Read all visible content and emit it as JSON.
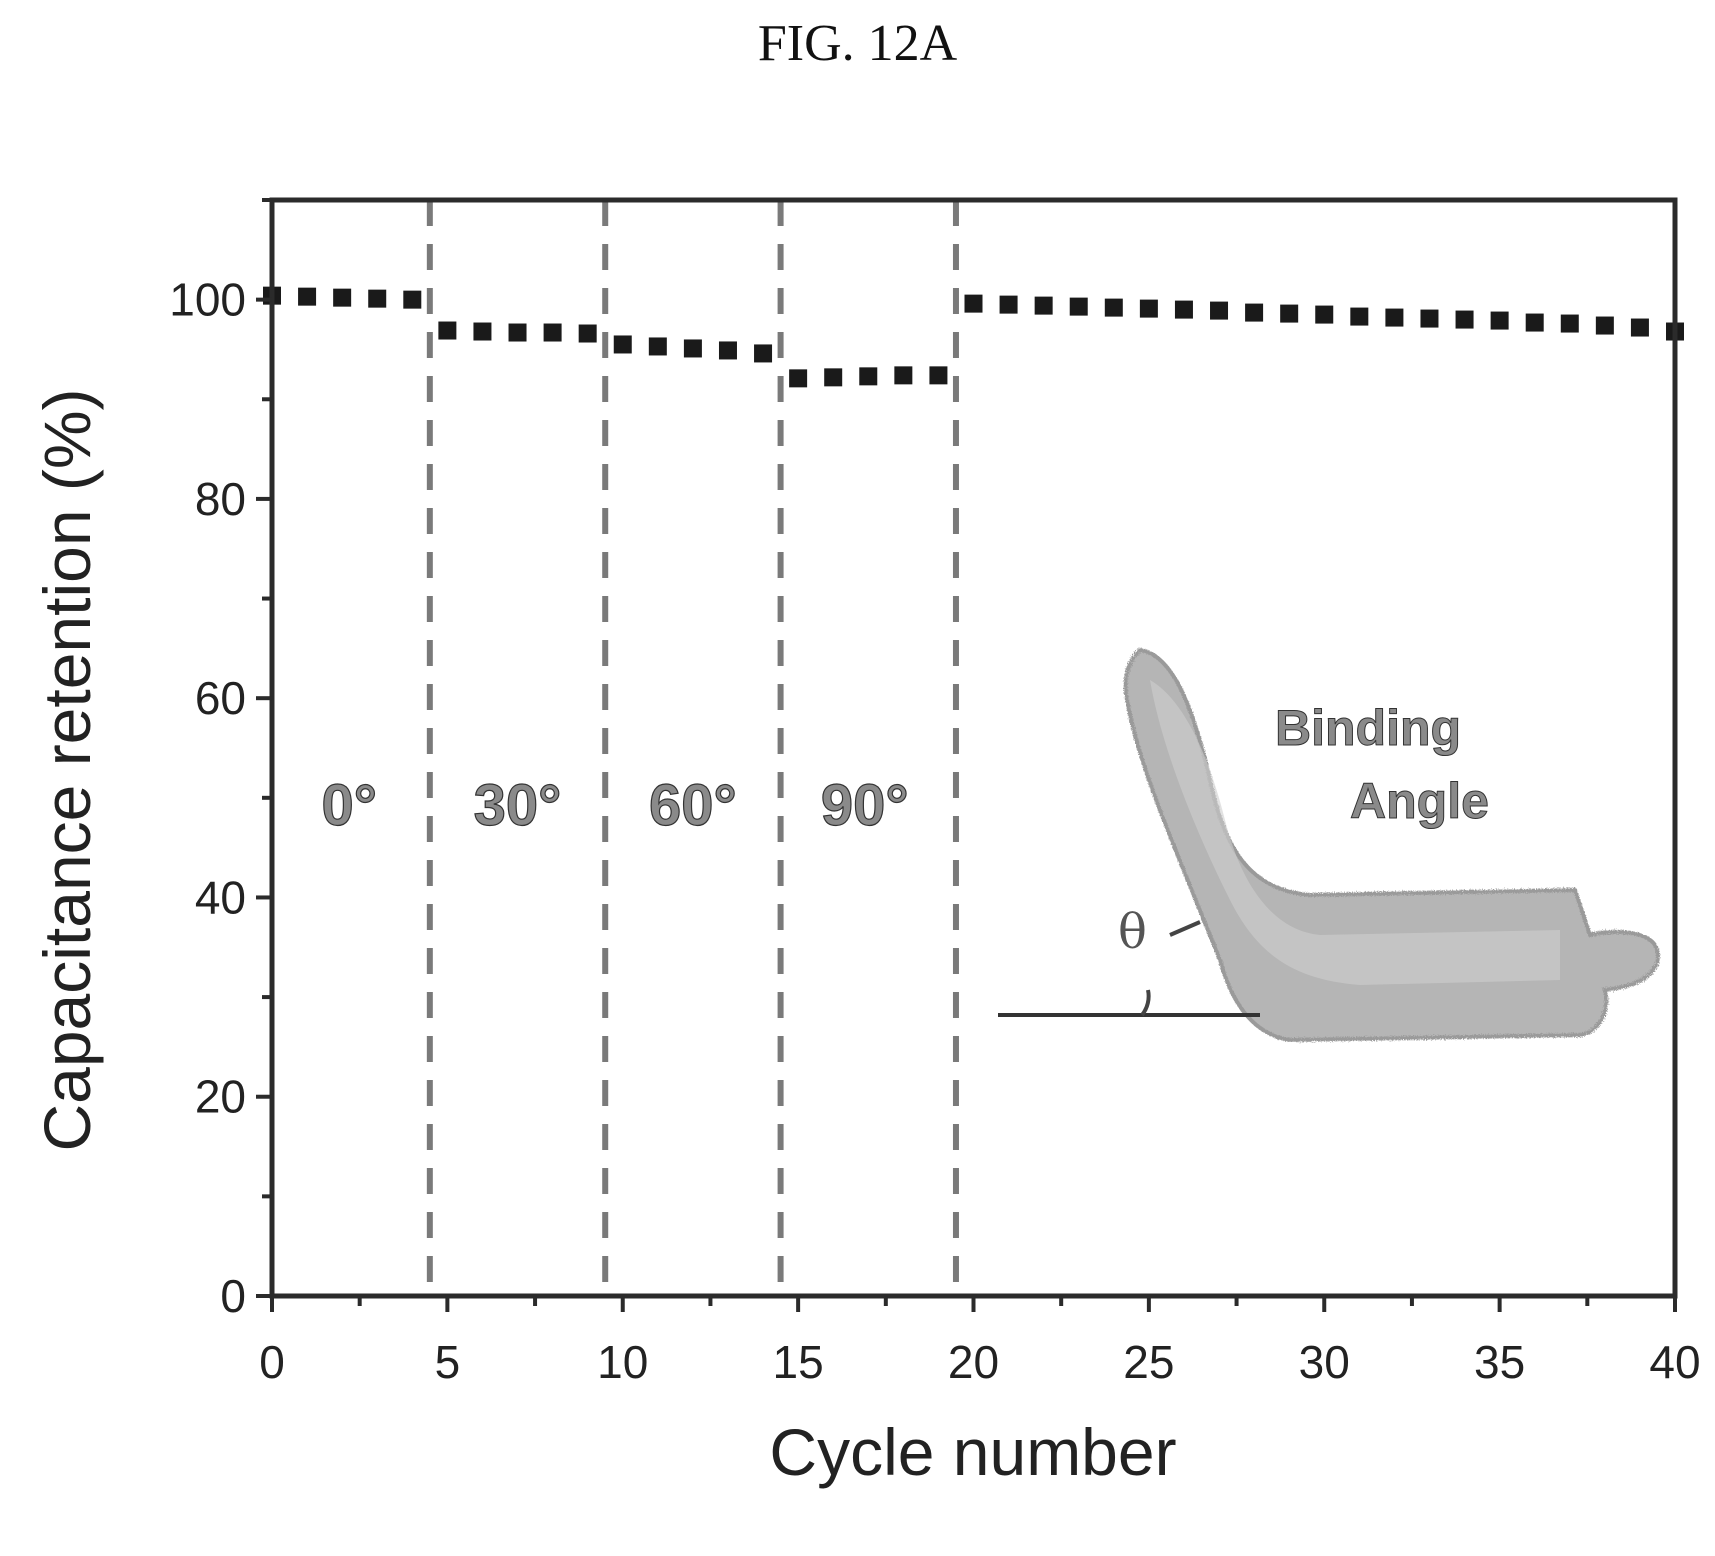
{
  "figure_title": "FIG. 12A",
  "chart_data": {
    "type": "scatter",
    "title": "",
    "xlabel": "Cycle number",
    "ylabel": "Capacitance retention (%)",
    "xlim": [
      0,
      40
    ],
    "ylim": [
      0,
      110
    ],
    "xticks": [
      0,
      5,
      10,
      15,
      20,
      25,
      30,
      35,
      40
    ],
    "yticks": [
      0,
      20,
      40,
      60,
      80,
      100
    ],
    "grid": false,
    "legend": "none",
    "marker": "square",
    "marker_color": "#1a1a1a",
    "series": [
      {
        "x": [
          0,
          1,
          2,
          3,
          4,
          5,
          6,
          7,
          8,
          9,
          10,
          11,
          12,
          13,
          14,
          15,
          16,
          17,
          18,
          19,
          20,
          21,
          22,
          23,
          24,
          25,
          26,
          27,
          28,
          29,
          30,
          31,
          32,
          33,
          34,
          35,
          36,
          37,
          38,
          39,
          40
        ],
        "y": [
          100.4,
          100.3,
          100.2,
          100.1,
          100.0,
          96.9,
          96.8,
          96.7,
          96.7,
          96.6,
          95.5,
          95.3,
          95.1,
          94.9,
          94.6,
          92.1,
          92.2,
          92.3,
          92.4,
          92.4,
          99.6,
          99.5,
          99.4,
          99.3,
          99.2,
          99.1,
          99.0,
          98.9,
          98.7,
          98.6,
          98.5,
          98.3,
          98.2,
          98.1,
          98.0,
          97.9,
          97.7,
          97.6,
          97.4,
          97.2,
          96.8
        ]
      }
    ],
    "dividers": [
      4.5,
      9.5,
      14.5,
      19.5
    ],
    "regions": [
      {
        "label": "0°",
        "x": 2.2
      },
      {
        "label": "30°",
        "x": 7.0
      },
      {
        "label": "60°",
        "x": 12.0
      },
      {
        "label": "90°",
        "x": 16.9
      }
    ],
    "annotation": {
      "line1": "Binding",
      "line2": "Angle",
      "symbol": "θ"
    }
  }
}
